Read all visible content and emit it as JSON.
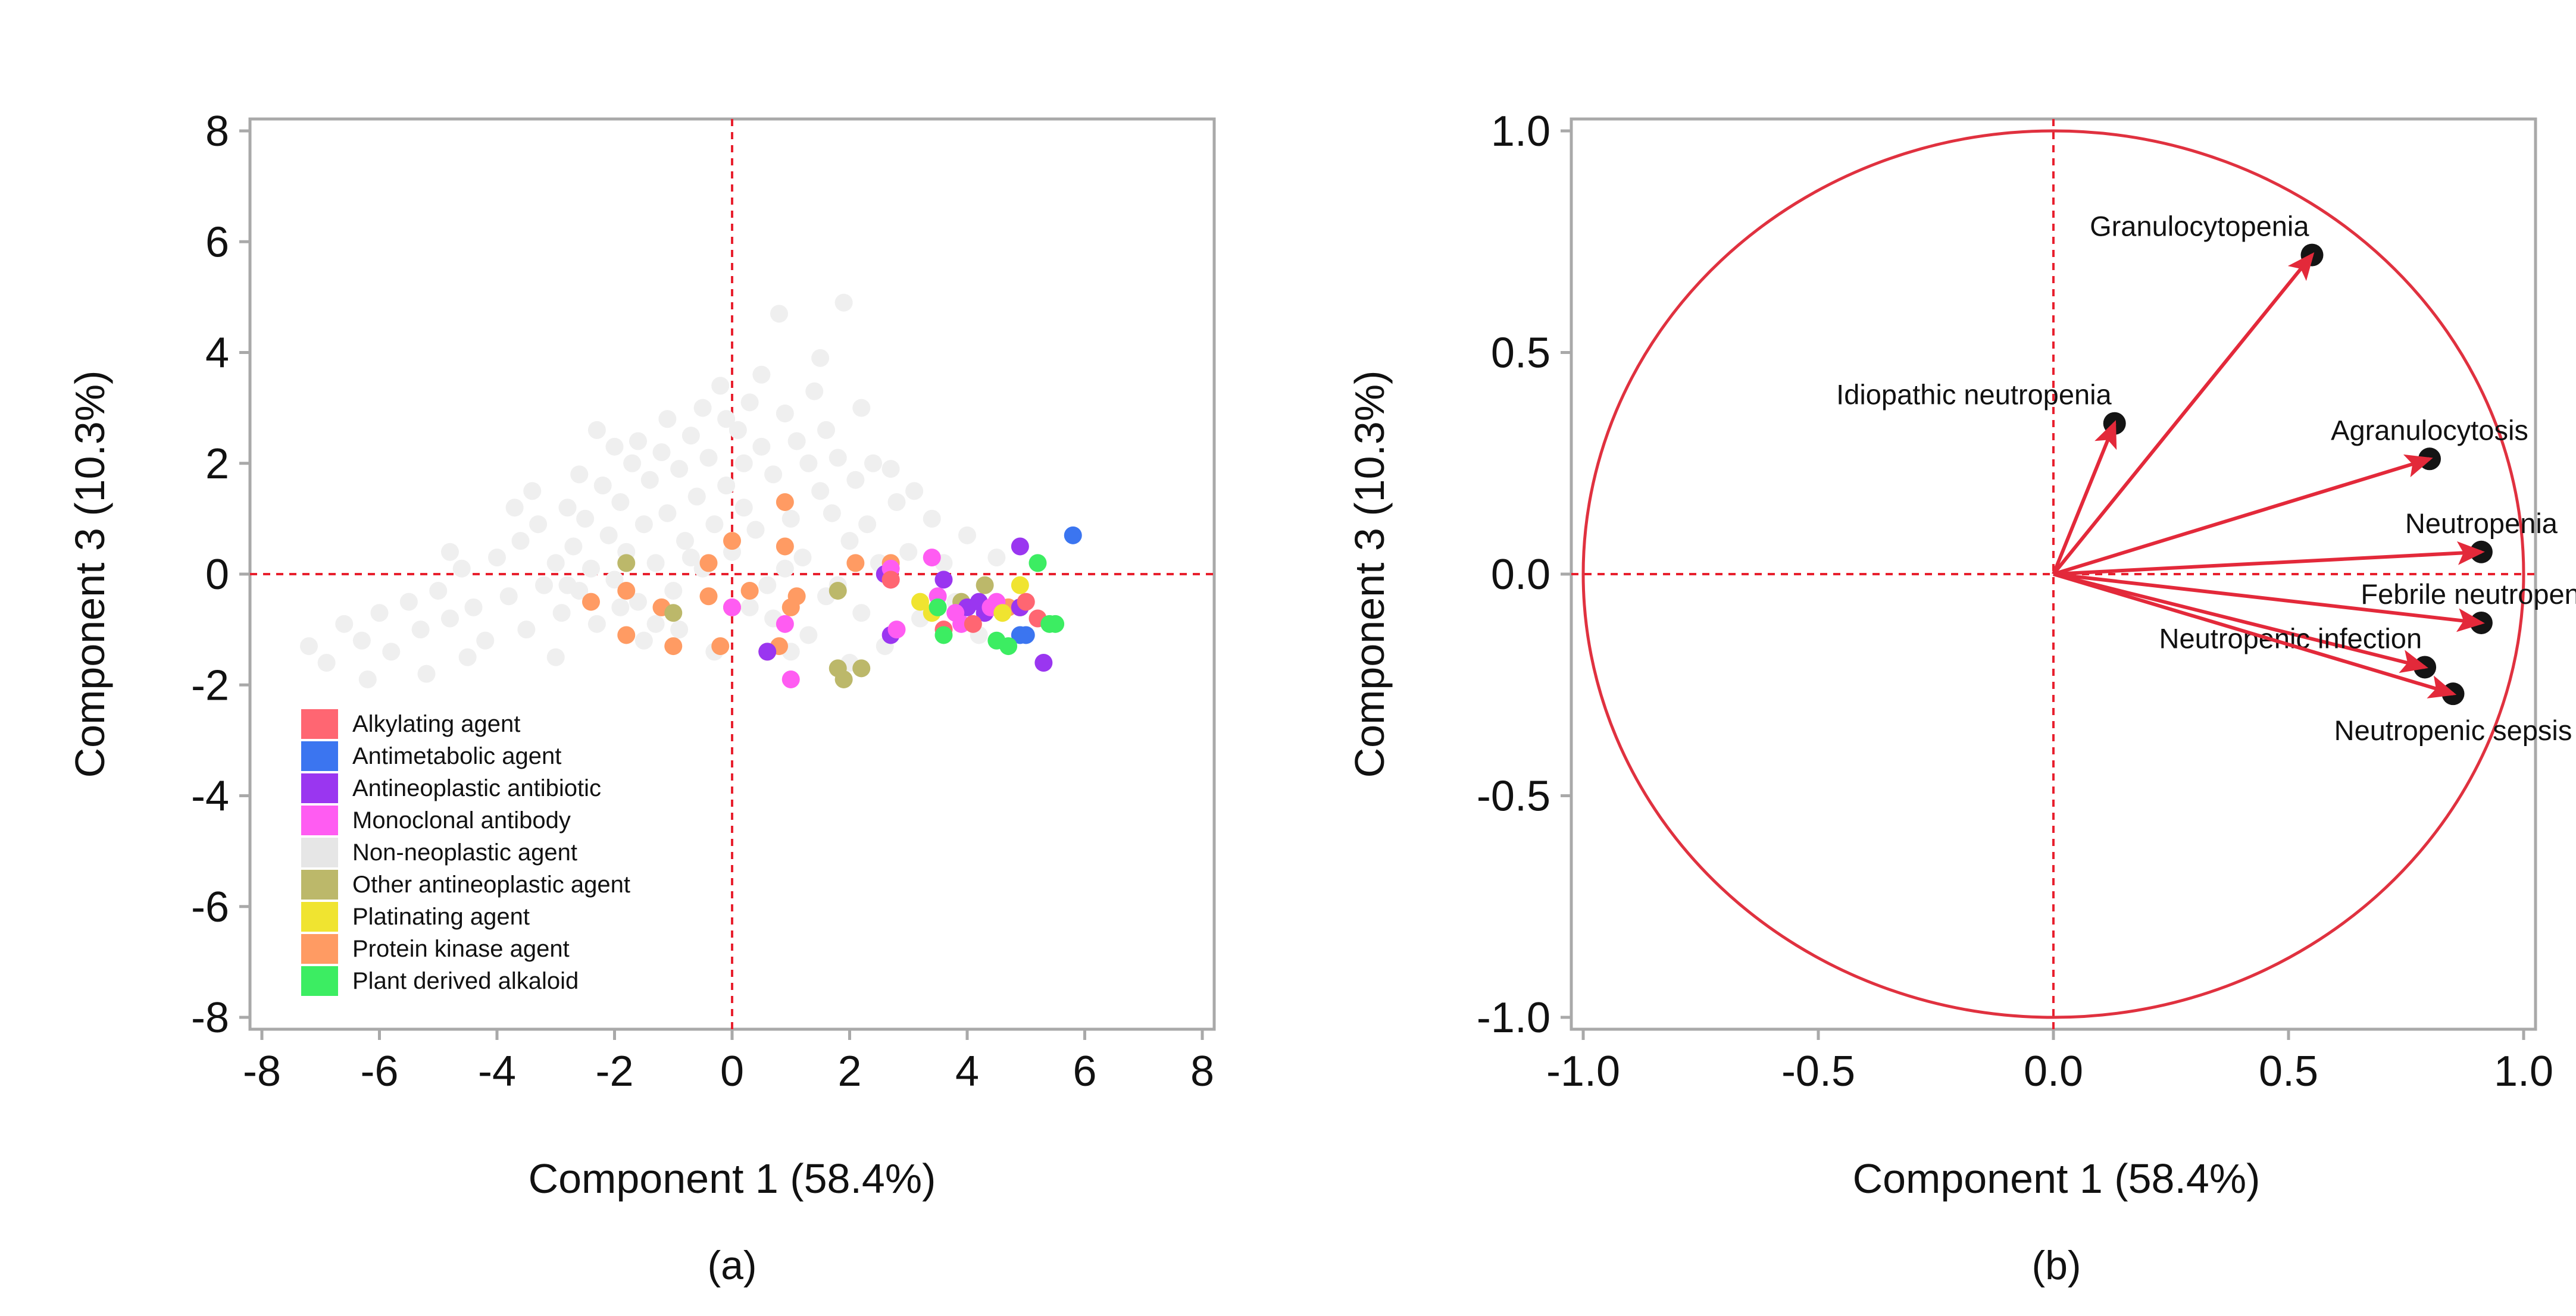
{
  "colors": {
    "frame": "#a9a9a9",
    "ref_line": "#e8202e",
    "circle": "#e0313f",
    "arrow": "#e3293a",
    "node": "#141414",
    "background": "#ffffff"
  },
  "chart_data": [
    {
      "type": "scatter",
      "panel": "a",
      "caption": "(a)",
      "xlabel": "Component  1 (58.4%)",
      "ylabel": "Component  3 (10.3%)",
      "xlim": [
        -8,
        8
      ],
      "ylim": [
        -8,
        8
      ],
      "xticks": [
        "-8",
        "-6",
        "-4",
        "-2",
        "0",
        "2",
        "4",
        "6",
        "8"
      ],
      "yticks": [
        "8",
        "6",
        "4",
        "2",
        "0",
        "-2",
        "-4",
        "-6",
        "-8"
      ],
      "reference_lines": {
        "x": 0,
        "y": 0
      },
      "legend": [
        {
          "name": "Alkylating agent",
          "color": "#ff6672"
        },
        {
          "name": "Antimetabolic agent",
          "color": "#3b75f0"
        },
        {
          "name": "Antineoplastic antibiotic",
          "color": "#9a36f0"
        },
        {
          "name": "Monoclonal antibody",
          "color": "#ff5cf2"
        },
        {
          "name": "Non-neoplastic agent",
          "color": "#e6e6e6"
        },
        {
          "name": "Other antineoplastic agent",
          "color": "#bcb86a"
        },
        {
          "name": "Platinating agent",
          "color": "#f0e430"
        },
        {
          "name": "Protein kinase agent",
          "color": "#ff9b63"
        },
        {
          "name": "Plant derived alkaloid",
          "color": "#3ced62"
        }
      ],
      "series": [
        {
          "name": "Non-neoplastic agent",
          "color": "#efefef",
          "points": [
            [
              -7.2,
              -1.3
            ],
            [
              -6.9,
              -1.6
            ],
            [
              -6.6,
              -0.9
            ],
            [
              -6.3,
              -1.2
            ],
            [
              -6.0,
              -0.7
            ],
            [
              -5.8,
              -1.4
            ],
            [
              -5.5,
              -0.5
            ],
            [
              -5.3,
              -1.0
            ],
            [
              -5.0,
              -0.3
            ],
            [
              -4.8,
              -0.8
            ],
            [
              -4.6,
              0.1
            ],
            [
              -4.4,
              -0.6
            ],
            [
              -4.2,
              -1.2
            ],
            [
              -4.0,
              0.3
            ],
            [
              -3.8,
              -0.4
            ],
            [
              -3.6,
              0.6
            ],
            [
              -3.5,
              -1.0
            ],
            [
              -3.3,
              0.9
            ],
            [
              -3.2,
              -0.2
            ],
            [
              -3.0,
              0.2
            ],
            [
              -2.9,
              -0.7
            ],
            [
              -2.8,
              1.2
            ],
            [
              -2.7,
              0.5
            ],
            [
              -2.6,
              -0.3
            ],
            [
              -2.5,
              1.0
            ],
            [
              -2.4,
              0.1
            ],
            [
              -2.3,
              -0.9
            ],
            [
              -2.2,
              1.6
            ],
            [
              -2.1,
              0.7
            ],
            [
              -2.0,
              -0.1
            ],
            [
              -1.9,
              1.3
            ],
            [
              -1.8,
              0.4
            ],
            [
              -1.7,
              2.0
            ],
            [
              -1.6,
              -0.5
            ],
            [
              -1.5,
              0.9
            ],
            [
              -1.4,
              1.7
            ],
            [
              -1.3,
              0.2
            ],
            [
              -1.2,
              2.2
            ],
            [
              -1.1,
              1.1
            ],
            [
              -1.0,
              -0.3
            ],
            [
              -0.9,
              1.9
            ],
            [
              -0.8,
              0.6
            ],
            [
              -0.7,
              2.5
            ],
            [
              -0.6,
              1.4
            ],
            [
              -0.5,
              0.1
            ],
            [
              -0.4,
              2.1
            ],
            [
              -0.3,
              0.9
            ],
            [
              -0.2,
              3.4
            ],
            [
              -0.1,
              1.6
            ],
            [
              0.0,
              0.4
            ],
            [
              0.1,
              2.6
            ],
            [
              0.2,
              1.2
            ],
            [
              0.3,
              3.1
            ],
            [
              0.4,
              0.8
            ],
            [
              0.5,
              2.3
            ],
            [
              0.6,
              -0.2
            ],
            [
              0.7,
              1.8
            ],
            [
              0.8,
              4.7
            ],
            [
              0.9,
              2.9
            ],
            [
              1.0,
              1.0
            ],
            [
              1.1,
              2.4
            ],
            [
              1.2,
              0.3
            ],
            [
              1.3,
              2.0
            ],
            [
              1.4,
              3.3
            ],
            [
              1.5,
              1.5
            ],
            [
              1.6,
              -0.4
            ],
            [
              1.7,
              1.1
            ],
            [
              1.8,
              2.1
            ],
            [
              1.9,
              4.9
            ],
            [
              2.0,
              0.6
            ],
            [
              2.1,
              1.7
            ],
            [
              2.2,
              -0.7
            ],
            [
              2.3,
              0.9
            ],
            [
              2.4,
              2.0
            ],
            [
              2.5,
              0.2
            ],
            [
              2.6,
              -1.3
            ],
            [
              2.8,
              1.3
            ],
            [
              3.0,
              0.4
            ],
            [
              3.2,
              -0.8
            ],
            [
              3.4,
              1.0
            ],
            [
              3.6,
              0.2
            ],
            [
              3.8,
              -0.5
            ],
            [
              4.0,
              0.7
            ],
            [
              4.2,
              -1.1
            ],
            [
              4.5,
              0.3
            ],
            [
              -3.0,
              -1.5
            ],
            [
              -2.6,
              1.8
            ],
            [
              -2.0,
              2.3
            ],
            [
              -1.5,
              -1.2
            ],
            [
              -0.9,
              -1.0
            ],
            [
              -0.5,
              3.0
            ],
            [
              0.2,
              2.0
            ],
            [
              1.6,
              2.6
            ],
            [
              2.2,
              3.0
            ],
            [
              -4.8,
              0.4
            ],
            [
              -5.2,
              -1.8
            ],
            [
              -3.7,
              1.2
            ],
            [
              -1.9,
              -0.6
            ],
            [
              0.7,
              -0.8
            ],
            [
              1.3,
              -1.1
            ],
            [
              -0.3,
              -1.4
            ],
            [
              0.5,
              3.6
            ],
            [
              -1.1,
              2.8
            ],
            [
              2.7,
              1.9
            ],
            [
              -6.2,
              -1.9
            ],
            [
              -4.5,
              -1.5
            ],
            [
              -2.3,
              2.6
            ],
            [
              0.9,
              0.1
            ],
            [
              1.5,
              3.9
            ],
            [
              -0.7,
              0.3
            ],
            [
              0.3,
              -0.6
            ],
            [
              -1.6,
              2.4
            ],
            [
              -2.8,
              -0.2
            ],
            [
              1.0,
              -1.4
            ],
            [
              2.0,
              -1.6
            ],
            [
              -3.4,
              1.5
            ],
            [
              3.1,
              1.5
            ],
            [
              -0.1,
              2.8
            ],
            [
              1.8,
              -0.2
            ],
            [
              -1.3,
              -0.9
            ]
          ]
        },
        {
          "name": "Protein kinase agent",
          "color": "#ff9b63",
          "points": [
            [
              -2.4,
              -0.5
            ],
            [
              -1.8,
              -0.3
            ],
            [
              -1.8,
              -1.1
            ],
            [
              -1.2,
              -0.6
            ],
            [
              -1.0,
              -1.3
            ],
            [
              -0.4,
              -0.4
            ],
            [
              -0.4,
              0.2
            ],
            [
              0.0,
              -0.6
            ],
            [
              0.0,
              0.6
            ],
            [
              0.6,
              -1.4
            ],
            [
              0.9,
              1.3
            ],
            [
              0.9,
              0.5
            ],
            [
              1.0,
              -0.6
            ],
            [
              1.1,
              -0.4
            ],
            [
              2.1,
              0.2
            ],
            [
              2.7,
              0.2
            ],
            [
              2.7,
              -0.1
            ],
            [
              0.8,
              -1.3
            ],
            [
              -0.2,
              -1.3
            ],
            [
              4.6,
              -0.6
            ],
            [
              4.7,
              -0.6
            ],
            [
              0.3,
              -0.3
            ]
          ]
        },
        {
          "name": "Other antineoplastic agent",
          "color": "#bcb86a",
          "points": [
            [
              -1.8,
              0.2
            ],
            [
              -1.0,
              -0.7
            ],
            [
              1.8,
              -0.3
            ],
            [
              1.8,
              -1.7
            ],
            [
              2.2,
              -1.7
            ],
            [
              3.9,
              -0.5
            ],
            [
              4.3,
              -0.2
            ],
            [
              4.5,
              -0.6
            ],
            [
              4.9,
              -0.6
            ],
            [
              1.9,
              -1.9
            ]
          ]
        },
        {
          "name": "Antineoplastic antibiotic",
          "color": "#9a36f0",
          "points": [
            [
              2.6,
              0.0
            ],
            [
              2.7,
              -1.1
            ],
            [
              3.6,
              -0.1
            ],
            [
              4.0,
              -0.6
            ],
            [
              4.2,
              -0.5
            ],
            [
              4.9,
              0.5
            ],
            [
              4.9,
              -0.6
            ],
            [
              5.3,
              -1.6
            ],
            [
              0.6,
              -1.4
            ],
            [
              4.3,
              -0.7
            ]
          ]
        },
        {
          "name": "Monoclonal antibody",
          "color": "#ff5cf2",
          "points": [
            [
              0.0,
              -0.6
            ],
            [
              0.9,
              -0.9
            ],
            [
              1.0,
              -1.9
            ],
            [
              2.7,
              -0.1
            ],
            [
              2.8,
              -1.0
            ],
            [
              3.4,
              0.3
            ],
            [
              3.8,
              -0.7
            ],
            [
              3.9,
              -0.9
            ],
            [
              4.4,
              -0.6
            ],
            [
              4.5,
              -0.5
            ],
            [
              2.7,
              0.1
            ],
            [
              3.5,
              -0.4
            ]
          ]
        },
        {
          "name": "Alkylating agent",
          "color": "#ff6672",
          "points": [
            [
              2.7,
              -0.1
            ],
            [
              3.6,
              -1.0
            ],
            [
              5.2,
              -0.8
            ],
            [
              5.0,
              -0.5
            ],
            [
              4.1,
              -0.9
            ]
          ]
        },
        {
          "name": "Antimetabolic agent",
          "color": "#3b75f0",
          "points": [
            [
              5.8,
              0.7
            ],
            [
              5.0,
              -1.1
            ],
            [
              4.9,
              -1.1
            ]
          ]
        },
        {
          "name": "Platinating agent",
          "color": "#f0e430",
          "points": [
            [
              3.2,
              -0.5
            ],
            [
              4.9,
              -0.2
            ],
            [
              4.6,
              -0.7
            ],
            [
              3.4,
              -0.7
            ]
          ]
        },
        {
          "name": "Plant derived alkaloid",
          "color": "#3ced62",
          "points": [
            [
              3.5,
              -0.6
            ],
            [
              4.5,
              -1.2
            ],
            [
              5.2,
              0.2
            ],
            [
              5.5,
              -0.9
            ],
            [
              3.6,
              -1.1
            ],
            [
              5.4,
              -0.9
            ],
            [
              4.7,
              -1.3
            ]
          ]
        }
      ]
    },
    {
      "type": "scatter",
      "subtype": "loading-plot",
      "panel": "b",
      "caption": "(b)",
      "xlabel": "Component  1 (58.4%)",
      "ylabel": "Component  3 (10.3%)",
      "xlim": [
        -1.0,
        1.0
      ],
      "ylim": [
        -1.0,
        1.0
      ],
      "xticks": [
        "-1.0",
        "-0.5",
        "0.0",
        "0.5",
        "1.0"
      ],
      "yticks": [
        "1.0",
        "0.5",
        "0.0",
        "-0.5",
        "-1.0"
      ],
      "reference_lines": {
        "x": 0,
        "y": 0
      },
      "unit_circle": true,
      "vectors": [
        {
          "label": "Granulocytopenia",
          "x": 0.55,
          "y": 0.72,
          "label_align": "end"
        },
        {
          "label": "Idiopathic neutropenia",
          "x": 0.13,
          "y": 0.34,
          "label_align": "end"
        },
        {
          "label": "Agranulocytosis",
          "x": 0.8,
          "y": 0.26,
          "label_align": "middle"
        },
        {
          "label": "Neutropenia",
          "x": 0.91,
          "y": 0.05,
          "label_align": "middle"
        },
        {
          "label": "Febrile neutropenia",
          "x": 0.91,
          "y": -0.11,
          "label_align": "middle"
        },
        {
          "label": "Neutropenic infection",
          "x": 0.79,
          "y": -0.21,
          "label_align": "end"
        },
        {
          "label": "Neutropenic sepsis",
          "x": 0.85,
          "y": -0.27,
          "label_align": "middle"
        }
      ]
    }
  ]
}
